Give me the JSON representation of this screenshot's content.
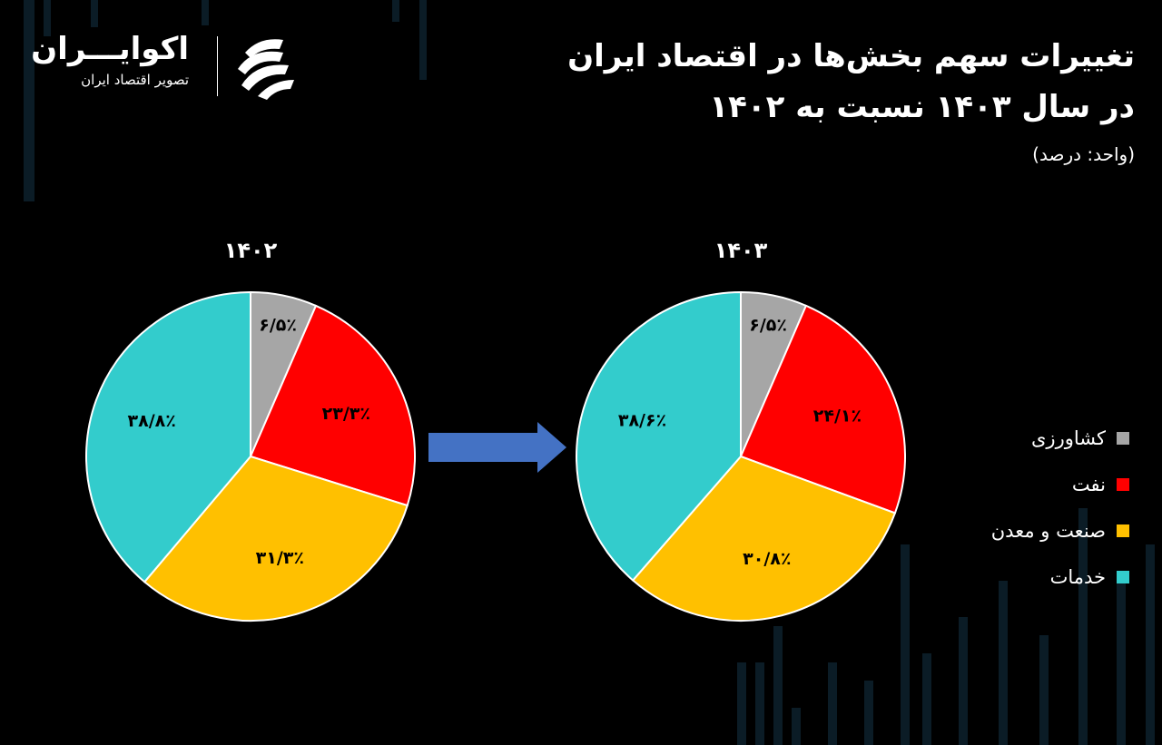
{
  "brand": {
    "name": "اکوایـــران",
    "tagline": "تصویر اقتصاد ایران"
  },
  "title": {
    "line1": "تغییرات سهم بخش‌ها در اقتصاد ایران",
    "line2": "در سال ۱۴۰۳ نسبت به ۱۴۰۲",
    "unit": "(واحد: درصد)"
  },
  "colors": {
    "background": "#000000",
    "agriculture": "#A6A6A6",
    "oil": "#FF0000",
    "industry": "#FFC000",
    "services": "#33CCCC",
    "arrow": "#4472C4"
  },
  "chart_data": [
    {
      "type": "pie",
      "title": "۱۴۰۲",
      "categories": [
        "کشاورزی",
        "نفت",
        "صنعت و معدن",
        "خدمات"
      ],
      "values": [
        6.5,
        23.3,
        31.3,
        38.8
      ],
      "labels": [
        "۶/۵٪",
        "۲۳/۳٪",
        "۳۱/۳٪",
        "۳۸/۸٪"
      ]
    },
    {
      "type": "pie",
      "title": "۱۴۰۳",
      "categories": [
        "کشاورزی",
        "نفت",
        "صنعت و معدن",
        "خدمات"
      ],
      "values": [
        6.5,
        24.1,
        30.8,
        38.6
      ],
      "labels": [
        "۶/۵٪",
        "۲۴/۱٪",
        "۳۰/۸٪",
        "۳۸/۶٪"
      ]
    }
  ],
  "legend": {
    "items": [
      {
        "label": "کشاورزی",
        "color": "#A6A6A6"
      },
      {
        "label": "نفت",
        "color": "#FF0000"
      },
      {
        "label": "صنعت و معدن",
        "color": "#FFC000"
      },
      {
        "label": "خدمات",
        "color": "#33CCCC"
      }
    ],
    "placement": "right"
  }
}
